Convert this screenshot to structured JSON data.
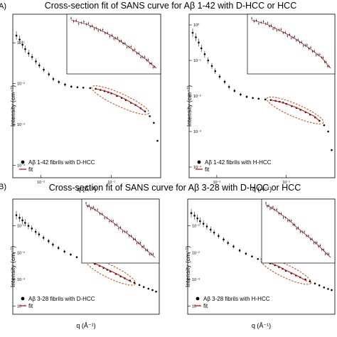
{
  "figure": {
    "panel_a_label": "A)",
    "panel_b_label": "B)",
    "title_top": "Cross-section fit of SANS curve for Aβ 1-42 with D-HCC or HCC",
    "title_bottom": "Cross-section fit of SANS curve for Aβ 3-28 with D-HCC or HCC",
    "fit_ellipse_color": "#cc5511",
    "fit_line_color": "#c62828",
    "marker_color": "#000000"
  },
  "chart_data": [
    {
      "type": "scatter",
      "panel": "A1",
      "xlabel": "q (Å⁻¹)",
      "ylabel": "Intensity (cm⁻¹)",
      "log_x": true,
      "log_y": true,
      "xlim": [
        0.004,
        0.5
      ],
      "ylim": [
        5e-05,
        0.5
      ],
      "x_ticks": [
        {
          "v": 0.01,
          "label": "10⁻²"
        },
        {
          "v": 0.1,
          "label": "10⁻¹"
        }
      ],
      "y_ticks": [
        {
          "v": 0.0001,
          "label": "10⁻⁴"
        },
        {
          "v": 0.001,
          "label": "10⁻³"
        },
        {
          "v": 0.01,
          "label": "10⁻²"
        },
        {
          "v": 0.1,
          "label": "10⁻¹"
        }
      ],
      "legend_position": "bottom-left",
      "series": [
        {
          "name": "Aβ 1-42 fibrils with D-HCC",
          "kind": "data",
          "x": [
            0.0045,
            0.005,
            0.0055,
            0.006,
            0.0067,
            0.0075,
            0.0085,
            0.0095,
            0.011,
            0.013,
            0.015,
            0.018,
            0.022,
            0.027,
            0.033,
            0.04,
            0.05,
            0.06,
            0.07,
            0.08,
            0.09,
            0.1,
            0.12,
            0.14,
            0.16,
            0.19,
            0.22,
            0.26,
            0.3,
            0.35,
            0.4,
            0.45
          ],
          "y": [
            0.15,
            0.12,
            0.09,
            0.07,
            0.055,
            0.045,
            0.035,
            0.028,
            0.022,
            0.017,
            0.013,
            0.011,
            0.0095,
            0.0085,
            0.0082,
            0.008,
            0.0078,
            0.0075,
            0.007,
            0.0066,
            0.0062,
            0.0058,
            0.005,
            0.0045,
            0.004,
            0.0034,
            0.003,
            0.0025,
            0.0021,
            0.0016,
            0.0011,
            0.0004
          ]
        },
        {
          "name": "fit",
          "kind": "fit",
          "x": [
            0.06,
            0.08,
            0.1,
            0.13,
            0.16,
            0.2,
            0.25,
            0.3
          ],
          "y": [
            0.0075,
            0.0067,
            0.0059,
            0.0049,
            0.0041,
            0.0033,
            0.0026,
            0.0021
          ]
        }
      ]
    },
    {
      "type": "scatter",
      "panel": "A2",
      "xlabel": "q (Å⁻¹)",
      "ylabel": "Intensity (cm⁻¹)",
      "log_x": true,
      "log_y": true,
      "xlim": [
        0.004,
        0.5
      ],
      "ylim": [
        5e-05,
        2
      ],
      "x_ticks": [
        {
          "v": 0.01,
          "label": "10⁻²"
        },
        {
          "v": 0.1,
          "label": "10⁻¹"
        }
      ],
      "y_ticks": [
        {
          "v": 0.0001,
          "label": "10⁻⁴"
        },
        {
          "v": 0.001,
          "label": "10⁻³"
        },
        {
          "v": 0.01,
          "label": "10⁻²"
        },
        {
          "v": 0.1,
          "label": "10⁻¹"
        },
        {
          "v": 1,
          "label": "10⁰"
        }
      ],
      "legend_position": "bottom-left",
      "series": [
        {
          "name": "Aβ 1-42 fibrils with H-HCC",
          "kind": "data",
          "x": [
            0.0045,
            0.005,
            0.0055,
            0.006,
            0.0067,
            0.0075,
            0.0085,
            0.0095,
            0.011,
            0.013,
            0.015,
            0.018,
            0.022,
            0.027,
            0.033,
            0.04,
            0.05,
            0.06,
            0.07,
            0.08,
            0.09,
            0.1,
            0.12,
            0.14,
            0.16,
            0.19,
            0.22,
            0.26,
            0.3,
            0.35,
            0.4,
            0.45
          ],
          "y": [
            0.6,
            0.45,
            0.32,
            0.22,
            0.15,
            0.1,
            0.07,
            0.05,
            0.035,
            0.025,
            0.018,
            0.014,
            0.011,
            0.0095,
            0.0088,
            0.0084,
            0.008,
            0.0077,
            0.0073,
            0.0069,
            0.0065,
            0.006,
            0.0052,
            0.0046,
            0.0041,
            0.0035,
            0.003,
            0.0025,
            0.002,
            0.0015,
            0.001,
            0.0003
          ]
        },
        {
          "name": "fit",
          "kind": "fit",
          "x": [
            0.06,
            0.08,
            0.1,
            0.13,
            0.16,
            0.2,
            0.25,
            0.3
          ],
          "y": [
            0.0077,
            0.0069,
            0.006,
            0.005,
            0.0042,
            0.0034,
            0.0027,
            0.002
          ]
        }
      ]
    },
    {
      "type": "scatter",
      "panel": "B1",
      "xlabel": "q (Å⁻¹)",
      "ylabel": "Intensity (cm⁻¹)",
      "log_x": true,
      "log_y": true,
      "xlim": [
        0.004,
        0.5
      ],
      "ylim": [
        5e-05,
        1
      ],
      "x_ticks": [],
      "y_ticks": [
        {
          "v": 0.0001,
          "label": "10⁻⁴"
        },
        {
          "v": 0.001,
          "label": "10⁻³"
        },
        {
          "v": 0.01,
          "label": "10⁻²"
        },
        {
          "v": 0.1,
          "label": "10⁻¹"
        }
      ],
      "legend_position": "bottom-left",
      "series": [
        {
          "name": "Aβ 3-28 fibrils with D-HCC",
          "kind": "data",
          "x": [
            0.0045,
            0.005,
            0.0055,
            0.006,
            0.0067,
            0.0075,
            0.0085,
            0.0095,
            0.011,
            0.013,
            0.015,
            0.018,
            0.022,
            0.027,
            0.033,
            0.04,
            0.05,
            0.06,
            0.07,
            0.08,
            0.09,
            0.1,
            0.12,
            0.14,
            0.16,
            0.19,
            0.22,
            0.26,
            0.3,
            0.35,
            0.4,
            0.45
          ],
          "y": [
            0.25,
            0.2,
            0.16,
            0.13,
            0.1,
            0.08,
            0.06,
            0.048,
            0.036,
            0.027,
            0.02,
            0.015,
            0.011,
            0.0085,
            0.0068,
            0.0055,
            0.0045,
            0.0038,
            0.0032,
            0.0027,
            0.0023,
            0.002,
            0.0016,
            0.0013,
            0.0011,
            0.0009,
            0.00075,
            0.00062,
            0.00052,
            0.00045,
            0.0004,
            0.00035
          ]
        },
        {
          "name": "fit",
          "kind": "fit",
          "x": [
            0.05,
            0.06,
            0.08,
            0.1,
            0.13,
            0.16,
            0.2
          ],
          "y": [
            0.0046,
            0.0039,
            0.0028,
            0.0021,
            0.0015,
            0.0011,
            0.0008
          ]
        }
      ]
    },
    {
      "type": "scatter",
      "panel": "B2",
      "xlabel": "q (Å⁻¹)",
      "ylabel": "Intensity (cm⁻¹)",
      "log_x": true,
      "log_y": true,
      "xlim": [
        0.004,
        0.5
      ],
      "ylim": [
        5e-05,
        1
      ],
      "x_ticks": [],
      "y_ticks": [
        {
          "v": 0.0001,
          "label": "10⁻⁴"
        },
        {
          "v": 0.001,
          "label": "10⁻³"
        },
        {
          "v": 0.01,
          "label": "10⁻²"
        },
        {
          "v": 0.1,
          "label": "10⁻¹"
        }
      ],
      "legend_position": "bottom-left",
      "series": [
        {
          "name": "Aβ 3-28 fibrils with H-HCC",
          "kind": "data",
          "x": [
            0.0045,
            0.005,
            0.0055,
            0.006,
            0.0067,
            0.0075,
            0.0085,
            0.0095,
            0.011,
            0.013,
            0.015,
            0.018,
            0.022,
            0.027,
            0.033,
            0.04,
            0.05,
            0.06,
            0.07,
            0.08,
            0.09,
            0.1,
            0.12,
            0.14,
            0.16,
            0.19,
            0.22,
            0.26,
            0.3,
            0.35,
            0.4,
            0.45
          ],
          "y": [
            0.3,
            0.24,
            0.19,
            0.15,
            0.12,
            0.095,
            0.072,
            0.056,
            0.042,
            0.031,
            0.023,
            0.017,
            0.012,
            0.0092,
            0.0072,
            0.0058,
            0.0047,
            0.004,
            0.0034,
            0.0029,
            0.0025,
            0.0021,
            0.0017,
            0.0014,
            0.0012,
            0.001,
            0.00085,
            0.0007,
            0.0006,
            0.0005,
            0.00044,
            0.0004
          ]
        },
        {
          "name": "fit",
          "kind": "fit",
          "x": [
            0.05,
            0.06,
            0.08,
            0.1,
            0.13,
            0.16,
            0.2
          ],
          "y": [
            0.0048,
            0.0041,
            0.003,
            0.0022,
            0.0016,
            0.0012,
            0.00086
          ]
        }
      ]
    }
  ]
}
